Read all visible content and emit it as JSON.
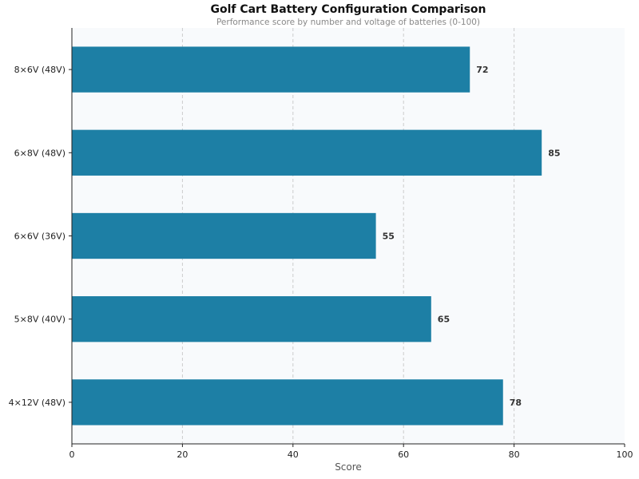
{
  "chart_data": {
    "type": "bar",
    "orientation": "horizontal",
    "title": "Golf Cart Battery Configuration Comparison",
    "subtitle": "Performance score by number and voltage of batteries (0-100)",
    "xlabel": "Score",
    "ylabel": "",
    "xlim": [
      0,
      100
    ],
    "xticks": [
      0,
      20,
      40,
      60,
      80,
      100
    ],
    "categories": [
      "8×6V (48V)",
      "6×8V (48V)",
      "6×6V (36V)",
      "5×8V (40V)",
      "4×12V (48V)"
    ],
    "values": [
      72,
      85,
      55,
      65,
      78
    ],
    "grid": "x dashed",
    "colors": {
      "bar": "#1d7fa5",
      "plot_bg": "#f8fafc"
    }
  }
}
